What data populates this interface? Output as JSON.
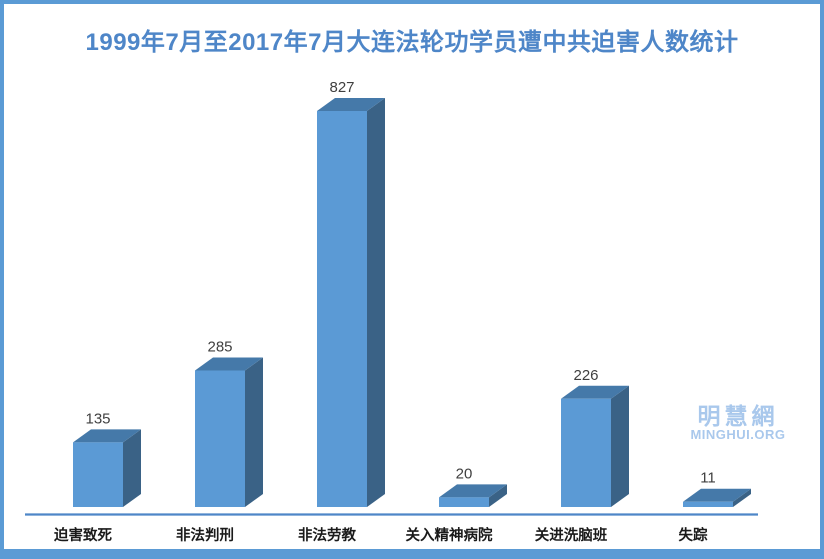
{
  "chart_data": {
    "type": "bar",
    "style": "3d-column",
    "title": "1999年7月至2017年7月大连法轮功学员遭中共迫害人数统计",
    "categories": [
      "迫害致死",
      "非法判刑",
      "非法劳教",
      "关入精神病院",
      "关进洗脑班",
      "失踪"
    ],
    "values": [
      135,
      285,
      827,
      20,
      226,
      11
    ],
    "data_labels_shown": true,
    "xlabel": "",
    "ylabel": "",
    "ylim": [
      0,
      827
    ],
    "grid": false,
    "legend": "none",
    "y_axis_shown": false
  },
  "watermark": {
    "line1": "明慧網",
    "line2": "MINGHUI.ORG"
  },
  "colors": {
    "bar_front": "#5B9AD5",
    "bar_top": "#4579A9",
    "bar_side": "#3A6286",
    "title_text": "#4E86C8",
    "axis_line": "#4E86C8",
    "frame_border": "#5B9BD5",
    "value_label": "#3F3F3F",
    "category_label": "#1A1A1A",
    "watermark": "#A9C8EC",
    "background": "#FFFFFF"
  }
}
